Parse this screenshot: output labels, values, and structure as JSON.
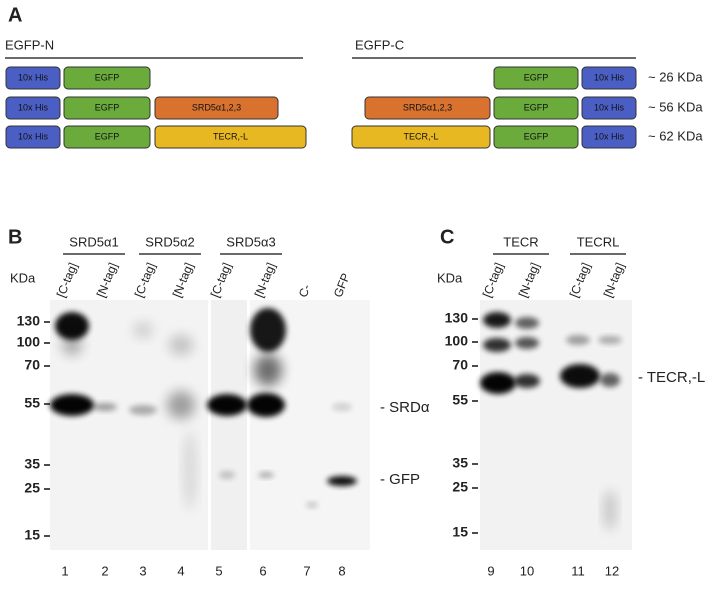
{
  "panel_a": {
    "label": "A",
    "egfp_n": {
      "title": "EGFP-N",
      "rows": [
        [
          "10x His",
          "EGFP"
        ],
        [
          "10x His",
          "EGFP",
          "SRD5α1,2,3"
        ],
        [
          "10x His",
          "EGFP",
          "TECR,-L"
        ]
      ]
    },
    "egfp_c": {
      "title": "EGFP-C",
      "rows": [
        [
          "EGFP",
          "10x His"
        ],
        [
          "SRD5α1,2,3",
          "EGFP",
          "10x His"
        ],
        [
          "TECR,-L",
          "EGFP",
          "10x His"
        ]
      ]
    },
    "sizes": [
      "~ 26 KDa",
      "~ 56 KDa",
      "~ 62 KDa"
    ]
  },
  "panel_b": {
    "label": "B",
    "groups": [
      "SRD5α1",
      "SRD5α2",
      "SRD5α3"
    ],
    "unit": "KDa",
    "lane_labels": [
      "[C-tag]",
      "[N-tag]",
      "[C-tag]",
      "[N-tag]",
      "[C-tag]",
      "[N-tag]",
      "C-",
      "GFP"
    ],
    "markers": [
      "130",
      "100",
      "70",
      "55",
      "35",
      "25",
      "15"
    ],
    "band_labels": [
      "- SRDα",
      "- GFP"
    ],
    "lanes": [
      "1",
      "2",
      "3",
      "4",
      "5",
      "6",
      "7",
      "8"
    ]
  },
  "panel_c": {
    "label": "C",
    "groups": [
      "TECR",
      "TECRL"
    ],
    "unit": "KDa",
    "lane_labels": [
      "[C-tag]",
      "[N-tag]",
      "[C-tag]",
      "[N-tag]"
    ],
    "markers": [
      "130",
      "100",
      "70",
      "55",
      "35",
      "25",
      "15"
    ],
    "band_labels": [
      "- TECR,-L"
    ],
    "lanes": [
      "9",
      "10",
      "11",
      "12"
    ]
  }
}
